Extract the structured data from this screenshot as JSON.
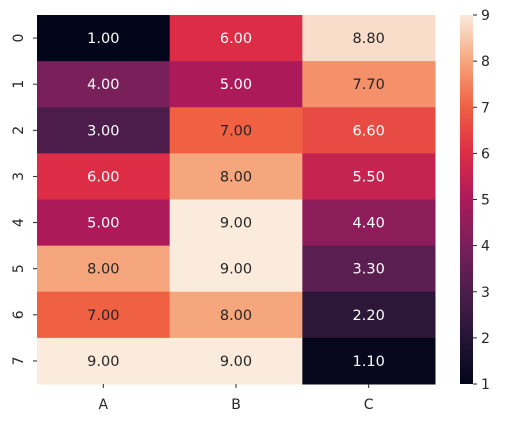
{
  "chart_data": {
    "type": "heatmap",
    "title": "",
    "xlabel": "",
    "ylabel": "",
    "x_categories": [
      "A",
      "B",
      "C"
    ],
    "y_categories": [
      "0",
      "1",
      "2",
      "3",
      "4",
      "5",
      "6",
      "7"
    ],
    "values": [
      [
        1.0,
        6.0,
        8.8
      ],
      [
        4.0,
        5.0,
        7.7
      ],
      [
        3.0,
        7.0,
        6.6
      ],
      [
        6.0,
        8.0,
        5.5
      ],
      [
        5.0,
        9.0,
        4.4
      ],
      [
        8.0,
        9.0,
        3.3
      ],
      [
        7.0,
        8.0,
        2.2
      ],
      [
        9.0,
        9.0,
        1.1
      ]
    ],
    "value_format": "0.00",
    "colorbar": {
      "vmin": 1,
      "vmax": 9,
      "ticks": [
        1,
        2,
        3,
        4,
        5,
        6,
        7,
        8,
        9
      ],
      "colormap": "rocket"
    },
    "grid": false,
    "legend": "right colorbar"
  }
}
